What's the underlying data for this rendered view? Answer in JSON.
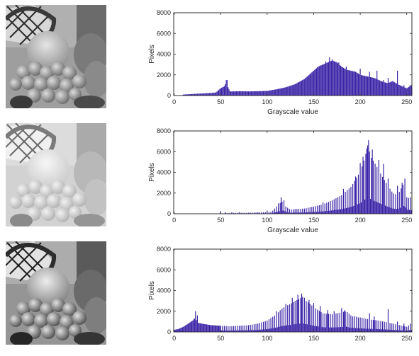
{
  "chart_data": [
    {
      "type": "histogram",
      "xlabel": "Grayscale value",
      "ylabel": "Pixels",
      "xlim": [
        0,
        255
      ],
      "ylim": [
        0,
        8000
      ],
      "xticks": [
        "0",
        "50",
        "100",
        "150",
        "200",
        "250"
      ],
      "yticks": [
        "0",
        "2000",
        "4000",
        "6000",
        "8000"
      ],
      "bar_color": "#3a23a6",
      "anchors": [
        [
          0,
          0
        ],
        [
          8,
          0
        ],
        [
          10,
          100
        ],
        [
          20,
          150
        ],
        [
          30,
          200
        ],
        [
          40,
          250
        ],
        [
          45,
          300
        ],
        [
          50,
          700
        ],
        [
          52,
          800
        ],
        [
          54,
          900
        ],
        [
          55,
          1100
        ],
        [
          56,
          1300
        ],
        [
          57,
          1500
        ],
        [
          58,
          800
        ],
        [
          60,
          400
        ],
        [
          65,
          400
        ],
        [
          70,
          420
        ],
        [
          80,
          400
        ],
        [
          90,
          420
        ],
        [
          100,
          450
        ],
        [
          110,
          600
        ],
        [
          120,
          800
        ],
        [
          130,
          1100
        ],
        [
          140,
          1600
        ],
        [
          145,
          2000
        ],
        [
          150,
          2400
        ],
        [
          155,
          2800
        ],
        [
          160,
          3000
        ],
        [
          165,
          3200
        ],
        [
          170,
          3400
        ],
        [
          175,
          3200
        ],
        [
          180,
          2800
        ],
        [
          185,
          2500
        ],
        [
          190,
          2400
        ],
        [
          195,
          2300
        ],
        [
          200,
          2000
        ],
        [
          205,
          1900
        ],
        [
          210,
          1800
        ],
        [
          215,
          1700
        ],
        [
          220,
          1500
        ],
        [
          225,
          1300
        ],
        [
          230,
          1200
        ],
        [
          235,
          1400
        ],
        [
          240,
          1100
        ],
        [
          245,
          900
        ],
        [
          250,
          700
        ],
        [
          255,
          1000
        ]
      ],
      "spikes": [
        [
          56,
          1500
        ],
        [
          140,
          1600
        ],
        [
          157,
          2900
        ],
        [
          163,
          3300
        ],
        [
          167,
          3700
        ],
        [
          170,
          3500
        ],
        [
          177,
          3200
        ],
        [
          185,
          2800
        ],
        [
          200,
          2600
        ],
        [
          210,
          2300
        ],
        [
          218,
          2400
        ],
        [
          225,
          1500
        ],
        [
          230,
          1700
        ],
        [
          240,
          2400
        ],
        [
          247,
          1000
        ],
        [
          254,
          1000
        ]
      ],
      "spacing": 1,
      "minval": 0
    },
    {
      "type": "histogram",
      "xlabel": "Grayscale value",
      "ylabel": "Pixels",
      "xlim": [
        0,
        255
      ],
      "ylim": [
        0,
        8000
      ],
      "xticks": [
        "0",
        "50",
        "100",
        "150",
        "200",
        "250"
      ],
      "yticks": [
        "0",
        "2000",
        "4000",
        "6000",
        "8000"
      ],
      "bar_color": "#3a23a6",
      "anchors": [
        [
          0,
          0
        ],
        [
          50,
          0
        ],
        [
          60,
          80
        ],
        [
          80,
          100
        ],
        [
          100,
          150
        ],
        [
          105,
          200
        ],
        [
          110,
          700
        ],
        [
          112,
          900
        ],
        [
          115,
          1100
        ],
        [
          118,
          1300
        ],
        [
          120,
          700
        ],
        [
          125,
          400
        ],
        [
          130,
          450
        ],
        [
          140,
          500
        ],
        [
          150,
          700
        ],
        [
          160,
          900
        ],
        [
          170,
          1300
        ],
        [
          180,
          1800
        ],
        [
          190,
          2600
        ],
        [
          195,
          3300
        ],
        [
          200,
          4100
        ],
        [
          203,
          4800
        ],
        [
          206,
          5800
        ],
        [
          208,
          6600
        ],
        [
          210,
          6000
        ],
        [
          212,
          5400
        ],
        [
          215,
          5000
        ],
        [
          220,
          4200
        ],
        [
          225,
          3400
        ],
        [
          230,
          2700
        ],
        [
          235,
          2000
        ],
        [
          240,
          1800
        ],
        [
          245,
          2600
        ],
        [
          248,
          3200
        ],
        [
          250,
          1600
        ],
        [
          255,
          1400
        ]
      ],
      "spikes": [
        [
          50,
          250
        ],
        [
          55,
          150
        ],
        [
          62,
          150
        ],
        [
          70,
          150
        ],
        [
          90,
          150
        ],
        [
          100,
          300
        ],
        [
          112,
          1000
        ],
        [
          115,
          1600
        ],
        [
          160,
          1100
        ],
        [
          182,
          2400
        ],
        [
          195,
          3600
        ],
        [
          200,
          4900
        ],
        [
          203,
          5500
        ],
        [
          207,
          6300
        ],
        [
          209,
          7100
        ],
        [
          213,
          6200
        ],
        [
          220,
          5200
        ],
        [
          225,
          4800
        ],
        [
          230,
          3400
        ],
        [
          240,
          2700
        ],
        [
          245,
          3000
        ],
        [
          248,
          3400
        ],
        [
          254,
          1600
        ]
      ],
      "spacing": 2,
      "minval": 0
    },
    {
      "type": "histogram",
      "xlabel": "",
      "ylabel": "Pixels",
      "xlim": [
        0,
        255
      ],
      "ylim": [
        0,
        8000
      ],
      "xticks": [
        "0",
        "50",
        "100",
        "150",
        "200",
        "250"
      ],
      "yticks": [
        "0",
        "2000",
        "4000",
        "6000",
        "8000"
      ],
      "bar_color": "#3a23a6",
      "anchors": [
        [
          0,
          200
        ],
        [
          5,
          300
        ],
        [
          10,
          500
        ],
        [
          15,
          800
        ],
        [
          20,
          1100
        ],
        [
          23,
          1400
        ],
        [
          25,
          900
        ],
        [
          30,
          800
        ],
        [
          40,
          650
        ],
        [
          50,
          600
        ],
        [
          60,
          550
        ],
        [
          70,
          600
        ],
        [
          80,
          650
        ],
        [
          90,
          800
        ],
        [
          100,
          1100
        ],
        [
          110,
          1700
        ],
        [
          115,
          2200
        ],
        [
          120,
          2500
        ],
        [
          125,
          2700
        ],
        [
          130,
          3000
        ],
        [
          135,
          3200
        ],
        [
          138,
          3400
        ],
        [
          140,
          3100
        ],
        [
          145,
          2800
        ],
        [
          150,
          2400
        ],
        [
          155,
          2100
        ],
        [
          160,
          1800
        ],
        [
          170,
          1700
        ],
        [
          180,
          1900
        ],
        [
          185,
          2000
        ],
        [
          190,
          1600
        ],
        [
          200,
          1400
        ],
        [
          210,
          1200
        ],
        [
          220,
          1100
        ],
        [
          230,
          900
        ],
        [
          240,
          700
        ],
        [
          250,
          500
        ],
        [
          255,
          800
        ]
      ],
      "spikes": [
        [
          23,
          2000
        ],
        [
          25,
          1600
        ],
        [
          110,
          2000
        ],
        [
          120,
          2700
        ],
        [
          127,
          3300
        ],
        [
          133,
          3600
        ],
        [
          137,
          3700
        ],
        [
          140,
          3300
        ],
        [
          145,
          3100
        ],
        [
          150,
          2800
        ],
        [
          157,
          2500
        ],
        [
          165,
          2100
        ],
        [
          172,
          2000
        ],
        [
          180,
          2300
        ],
        [
          183,
          2100
        ],
        [
          192,
          1500
        ],
        [
          198,
          1400
        ],
        [
          210,
          1800
        ],
        [
          215,
          1500
        ],
        [
          230,
          2200
        ],
        [
          240,
          1000
        ],
        [
          247,
          800
        ],
        [
          254,
          800
        ]
      ],
      "spacing": 2,
      "minval": 100
    }
  ]
}
